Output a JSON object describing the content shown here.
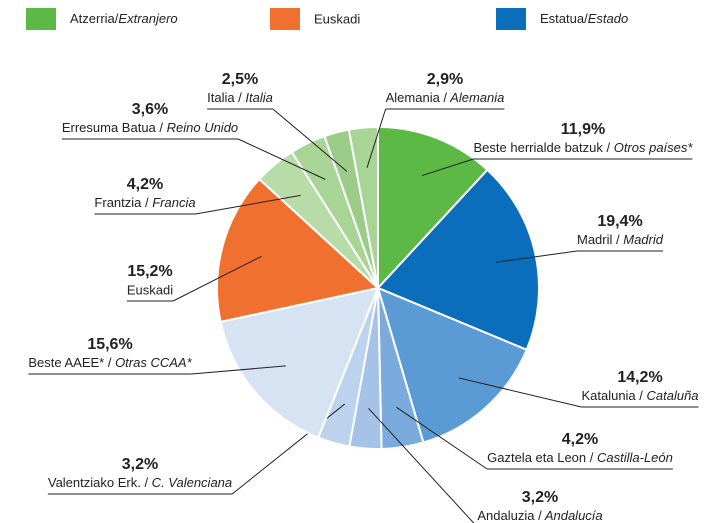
{
  "chart_data": {
    "type": "pie",
    "legend": [
      {
        "name": "Atzerria/Extranjero",
        "color": "#5cb946"
      },
      {
        "name": "Euskadi",
        "color": "#f07030"
      },
      {
        "name": "Estatua/Estado",
        "color": "#0a6ebd"
      }
    ],
    "categories": [
      "Beste herrialde batzuk / Otros países*",
      "Madril / Madrid",
      "Katalunia / Cataluña",
      "Gaztela eta Leon / Castilla-León",
      "Andaluzia / Andalucía",
      "Valentziako Erk. / C. Valenciana",
      "Beste AAEE* / Otras CCAA*",
      "Euskadi",
      "Frantzia / Francia",
      "Erresuma Batua / Reino Unido",
      "Italia / Italia",
      "Alemania / Alemania"
    ],
    "values": [
      11.9,
      19.4,
      14.2,
      4.2,
      3.2,
      3.2,
      15.6,
      15.2,
      4.2,
      3.6,
      2.5,
      2.9
    ],
    "value_labels": [
      "11,9%",
      "19,4%",
      "14,2%",
      "4,2%",
      "3,2%",
      "3,2%",
      "15,6%",
      "15,2%",
      "4,2%",
      "3,6%",
      "2,5%",
      "2,9%"
    ],
    "colors": [
      "#5cb946",
      "#0a6ebd",
      "#5b9bd5",
      "#7aabdc",
      "#a4c3e6",
      "#bcd3ee",
      "#d5e3f3",
      "#f07030",
      "#b8dca8",
      "#a8d495",
      "#9ccd88",
      "#a8d495"
    ]
  }
}
